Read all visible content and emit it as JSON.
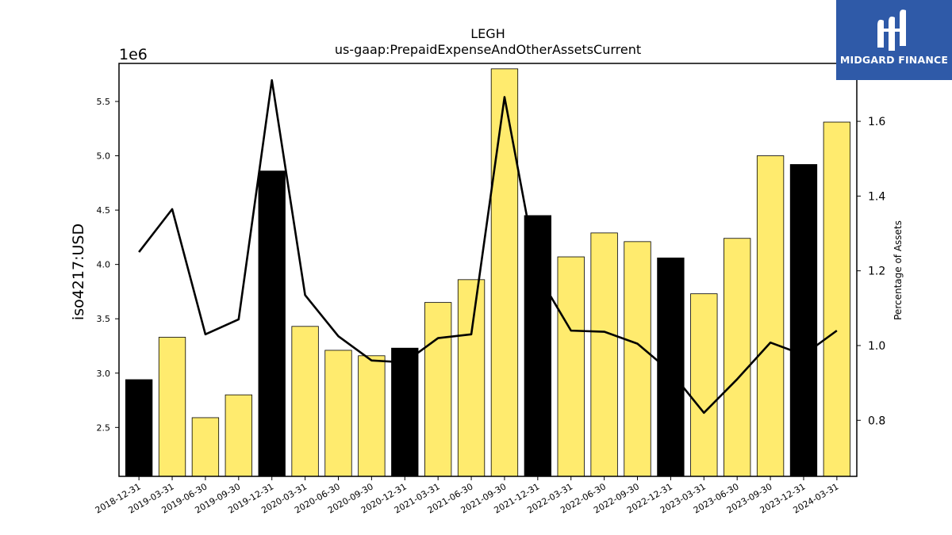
{
  "chart_data": {
    "type": "bar",
    "title": "LEGH",
    "subtitle": "us-gaap:PrepaidExpenseAndOtherAssetsCurrent",
    "ylabel": "iso4217:USD",
    "y2label": "Percentage of Assets",
    "y_offset_label": "1e6",
    "categories": [
      "2018-12-31",
      "2019-03-31",
      "2019-06-30",
      "2019-09-30",
      "2019-12-31",
      "2020-03-31",
      "2020-06-30",
      "2020-09-30",
      "2020-12-31",
      "2021-03-31",
      "2021-06-30",
      "2021-09-30",
      "2021-12-31",
      "2022-03-31",
      "2022-06-30",
      "2022-09-30",
      "2022-12-31",
      "2023-03-31",
      "2023-06-30",
      "2023-09-30",
      "2023-12-31",
      "2024-03-31"
    ],
    "values": [
      2.94,
      3.33,
      2.59,
      2.8,
      4.86,
      3.43,
      3.21,
      3.16,
      3.23,
      3.65,
      3.86,
      5.8,
      4.45,
      4.07,
      4.29,
      4.21,
      4.06,
      3.73,
      4.24,
      5.0,
      4.92,
      5.31
    ],
    "bar_colors": [
      "#000000",
      "#ffeb6e",
      "#ffeb6e",
      "#ffeb6e",
      "#000000",
      "#ffeb6e",
      "#ffeb6e",
      "#ffeb6e",
      "#000000",
      "#ffeb6e",
      "#ffeb6e",
      "#ffeb6e",
      "#000000",
      "#ffeb6e",
      "#ffeb6e",
      "#ffeb6e",
      "#000000",
      "#ffeb6e",
      "#ffeb6e",
      "#ffeb6e",
      "#000000",
      "#ffeb6e"
    ],
    "line_series": {
      "values": [
        1.25,
        1.365,
        1.03,
        1.07,
        1.71,
        1.135,
        1.025,
        0.96,
        0.955,
        1.02,
        1.03,
        1.665,
        1.19,
        1.04,
        1.037,
        1.005,
        0.93,
        0.82,
        0.91,
        1.008,
        0.975,
        1.04
      ],
      "color": "#000000"
    },
    "ylim": [
      2.05,
      5.85
    ],
    "y2lim": [
      0.65,
      1.755
    ],
    "yticks": [
      "2.5",
      "3.0",
      "3.5",
      "4.0",
      "4.5",
      "5.0",
      "5.5"
    ],
    "y2ticks": [
      "0.8",
      "1.0",
      "1.2",
      "1.4",
      "1.6"
    ],
    "grid": false
  },
  "logo": {
    "text": "MIDGARD FINANCE",
    "background": "#2f5aa8"
  }
}
